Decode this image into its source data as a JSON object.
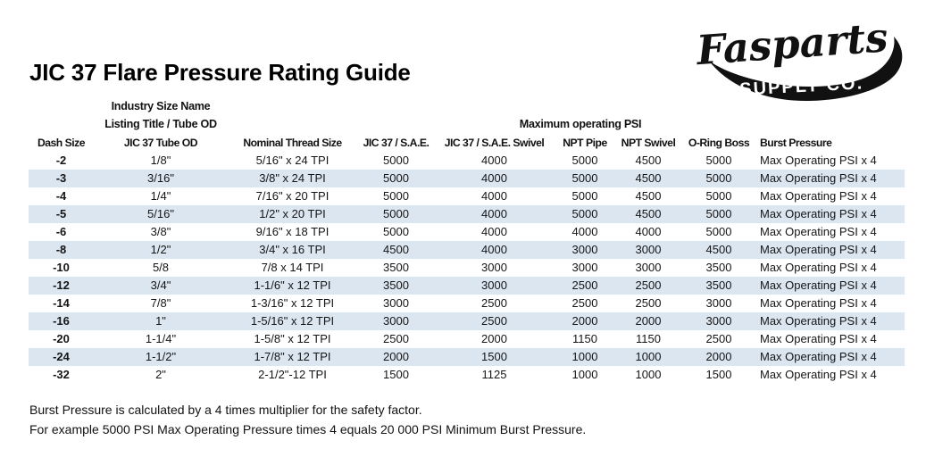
{
  "page": {
    "title": "JIC 37 Flare Pressure Rating Guide"
  },
  "logo": {
    "brand": "Fasparts",
    "subtitle": "SUPPLY CO.",
    "color": "#111111"
  },
  "table": {
    "banding_color": "#dce6f1",
    "header_industry": "Industry Size Name",
    "header_listing": "Listing Title / Tube OD",
    "header_psi_group": "Maximum operating PSI",
    "columns": [
      "Dash Size",
      "JIC 37 Tube OD",
      "Nominal Thread Size",
      "JIC 37 / S.A.E.",
      "JIC 37 / S.A.E. Swivel",
      "NPT Pipe",
      "NPT Swivel",
      "O-Ring Boss",
      "Burst Pressure"
    ],
    "rows": [
      [
        "-2",
        "1/8\"",
        "5/16\" x 24 TPI",
        "5000",
        "4000",
        "5000",
        "4500",
        "5000",
        "Max Operating PSI x 4"
      ],
      [
        "-3",
        "3/16\"",
        "3/8\" x 24 TPI",
        "5000",
        "4000",
        "5000",
        "4500",
        "5000",
        "Max Operating PSI x 4"
      ],
      [
        "-4",
        "1/4\"",
        "7/16\" x 20 TPI",
        "5000",
        "4000",
        "5000",
        "4500",
        "5000",
        "Max Operating PSI x 4"
      ],
      [
        "-5",
        "5/16\"",
        "1/2\" x 20 TPI",
        "5000",
        "4000",
        "5000",
        "4500",
        "5000",
        "Max Operating PSI x 4"
      ],
      [
        "-6",
        "3/8\"",
        "9/16\" x 18 TPI",
        "5000",
        "4000",
        "4000",
        "4000",
        "5000",
        "Max Operating PSI x 4"
      ],
      [
        "-8",
        "1/2\"",
        "3/4\" x 16 TPI",
        "4500",
        "4000",
        "3000",
        "3000",
        "4500",
        "Max Operating PSI x 4"
      ],
      [
        "-10",
        "5/8",
        "7/8 x 14 TPI",
        "3500",
        "3000",
        "3000",
        "3000",
        "3500",
        "Max Operating PSI x 4"
      ],
      [
        "-12",
        "3/4\"",
        "1-1/6\" x 12 TPI",
        "3500",
        "3000",
        "2500",
        "2500",
        "3500",
        "Max Operating PSI x 4"
      ],
      [
        "-14",
        "7/8\"",
        "1-3/16\" x 12 TPI",
        "3000",
        "2500",
        "2500",
        "2500",
        "3000",
        "Max Operating PSI x 4"
      ],
      [
        "-16",
        "1\"",
        "1-5/16\" x 12 TPI",
        "3000",
        "2500",
        "2000",
        "2000",
        "3000",
        "Max Operating PSI x 4"
      ],
      [
        "-20",
        "1-1/4\"",
        "1-5/8\" x 12 TPI",
        "2500",
        "2000",
        "1150",
        "1150",
        "2500",
        "Max Operating PSI x 4"
      ],
      [
        "-24",
        "1-1/2\"",
        "1-7/8\" x 12 TPI",
        "2000",
        "1500",
        "1000",
        "1000",
        "2000",
        "Max Operating PSI x 4"
      ],
      [
        "-32",
        "2\"",
        "2-1/2\"-12 TPI",
        "1500",
        "1125",
        "1000",
        "1000",
        "1500",
        "Max Operating PSI x 4"
      ]
    ]
  },
  "footer": {
    "line1": "Burst Pressure is calculated by a 4 times multiplier for the safety factor.",
    "line2": "For example 5000 PSI Max Operating Pressure times 4 equals 20 000 PSI Minimum Burst Pressure."
  }
}
